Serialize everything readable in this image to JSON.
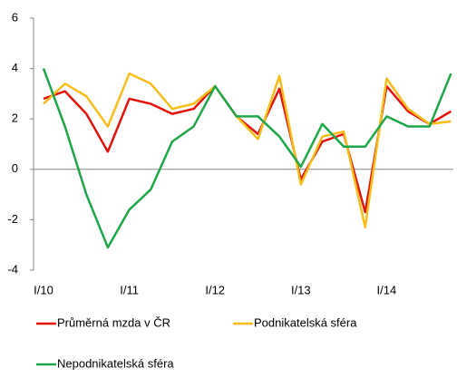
{
  "chart_data": {
    "type": "line",
    "categories": [
      "I/10",
      null,
      null,
      null,
      "I/11",
      null,
      null,
      null,
      "I/12",
      null,
      null,
      null,
      "I/13",
      null,
      null,
      null,
      "I/14",
      null,
      null,
      null
    ],
    "series": [
      {
        "name": "Průměrná mzda v ČR",
        "color": "#e3120b",
        "values": [
          2.8,
          3.1,
          2.2,
          0.7,
          2.8,
          2.6,
          2.2,
          2.4,
          3.3,
          2.1,
          1.4,
          3.2,
          -0.4,
          1.1,
          1.4,
          -1.7,
          3.3,
          2.3,
          1.8,
          2.3
        ]
      },
      {
        "name": "Podnikatelská sféra",
        "color": "#f5be1a",
        "values": [
          2.6,
          3.4,
          2.9,
          1.7,
          3.8,
          3.4,
          2.4,
          2.6,
          3.3,
          2.1,
          1.2,
          3.7,
          -0.6,
          1.3,
          1.5,
          -2.3,
          3.6,
          2.4,
          1.8,
          1.9
        ]
      },
      {
        "name": "Nepodnikatelská sféra",
        "color": "#1fa64a",
        "values": [
          4.0,
          1.7,
          -1.0,
          -3.1,
          -1.6,
          -0.8,
          1.1,
          1.7,
          3.3,
          2.1,
          2.1,
          1.3,
          0.1,
          1.8,
          0.9,
          0.9,
          2.1,
          1.7,
          1.7,
          3.8
        ]
      }
    ],
    "ylim": [
      -4,
      6
    ],
    "yticks": [
      -4,
      -2,
      0,
      2,
      4,
      6
    ]
  }
}
